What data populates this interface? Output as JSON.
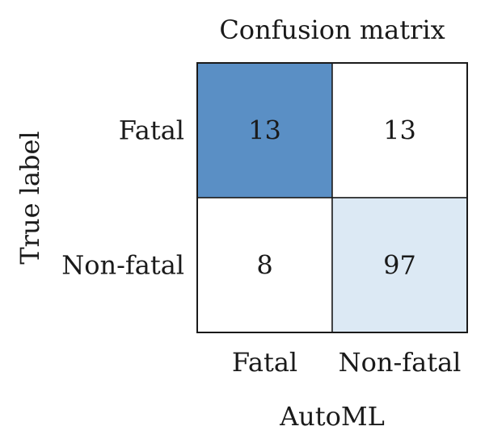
{
  "chart_data": {
    "type": "heatmap",
    "title": "Confusion matrix",
    "xlabel": "AutoML",
    "ylabel": "True label",
    "x_categories": [
      "Fatal",
      "Non-fatal"
    ],
    "y_categories": [
      "Fatal",
      "Non-fatal"
    ],
    "values": [
      [
        13,
        13
      ],
      [
        8,
        97
      ]
    ],
    "cell_colors": [
      [
        "#5a8fc5",
        "#ffffff"
      ],
      [
        "#ffffff",
        "#dce9f4"
      ]
    ],
    "grid": false,
    "legend": "none"
  }
}
